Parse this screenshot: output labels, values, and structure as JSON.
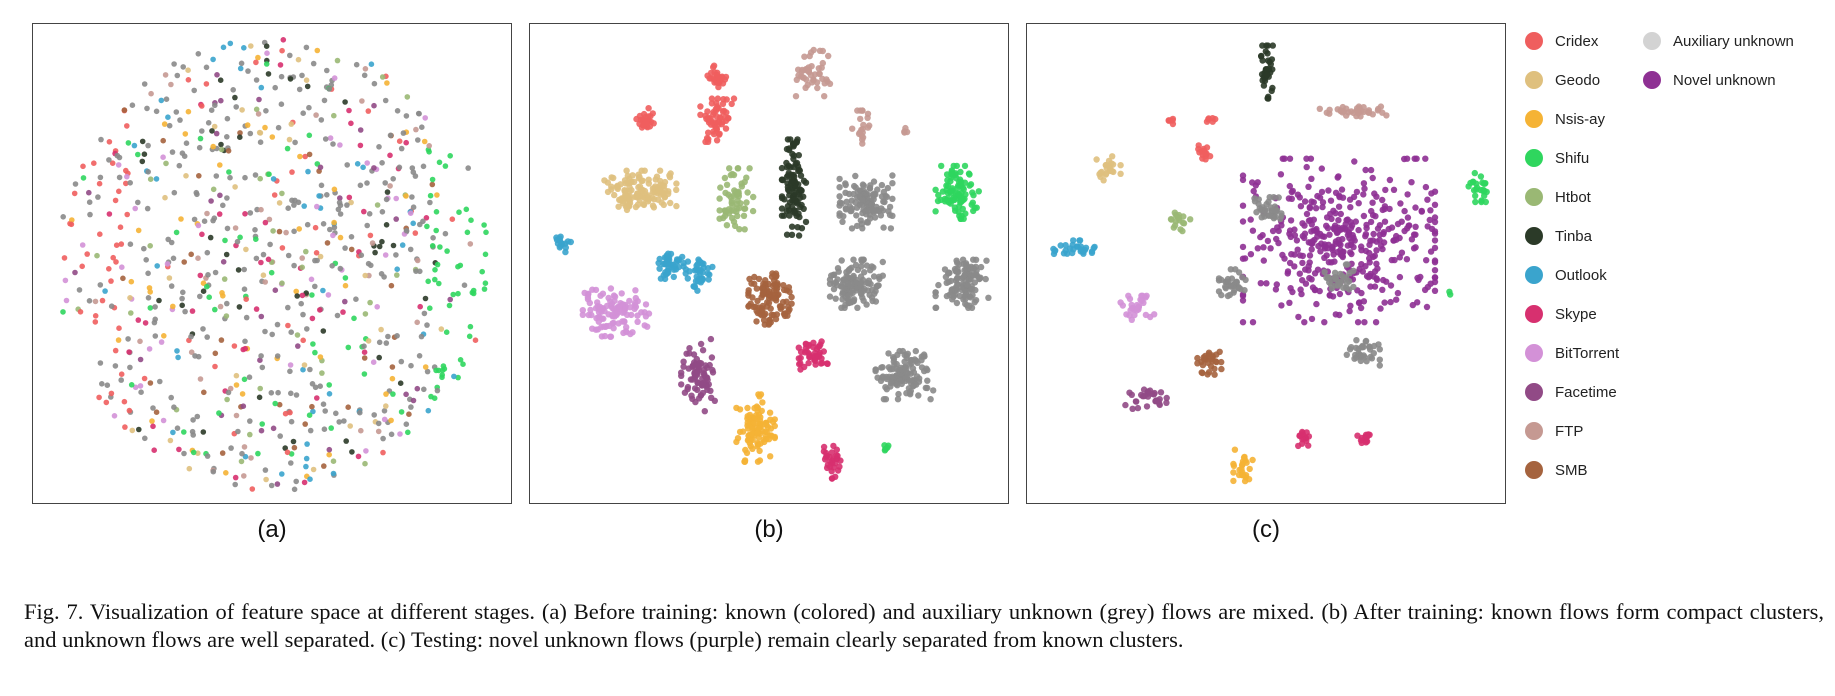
{
  "figure": {
    "panel_labels": [
      "(a)",
      "(b)",
      "(c)"
    ],
    "caption": "Fig. 7.  Visualization of feature space at different stages. (a) Before training: known (colored) and auxiliary unknown (grey) flows are mixed. (b) After training: known flows form compact clusters, and unknown flows are well separated. (c) Testing: novel unknown flows (purple) remain clearly separated from known clusters."
  },
  "legend": [
    {
      "name": "Cridex",
      "color": "#ef5e5e"
    },
    {
      "name": "Geodo",
      "color": "#dfc07e"
    },
    {
      "name": "Nsis-ay",
      "color": "#f5b335"
    },
    {
      "name": "Shifu",
      "color": "#2fd65e"
    },
    {
      "name": "Htbot",
      "color": "#9ab874"
    },
    {
      "name": "Tinba",
      "color": "#2b3a28"
    },
    {
      "name": "Outlook",
      "color": "#3aa4cd"
    },
    {
      "name": "Skype",
      "color": "#d7306f"
    },
    {
      "name": "BitTorrent",
      "color": "#d391d7"
    },
    {
      "name": "Facetime",
      "color": "#914a86"
    },
    {
      "name": "FTP",
      "color": "#c59992"
    },
    {
      "name": "SMB",
      "color": "#a5633e"
    },
    {
      "name": "Auxiliary unknown",
      "color": "#d3d3d3"
    },
    {
      "name": "Novel unknown",
      "color": "#8e3093"
    }
  ],
  "chart_data": [
    {
      "type": "scatter",
      "title": "(a)",
      "series_colors": {
        "known": "multi",
        "auxiliary_unknown": "#8a8a8a"
      },
      "clusters": []
    },
    {
      "type": "scatter",
      "title": "(b)",
      "clusters": [
        {
          "series": "Cridex",
          "cx": 0.24,
          "cy": 0.2,
          "rx": 0.02,
          "ry": 0.025,
          "n": 25
        },
        {
          "series": "Cridex",
          "cx": 0.39,
          "cy": 0.11,
          "rx": 0.02,
          "ry": 0.025,
          "n": 25
        },
        {
          "series": "Cridex",
          "cx": 0.39,
          "cy": 0.2,
          "rx": 0.035,
          "ry": 0.045,
          "n": 60
        },
        {
          "series": "FTP",
          "cx": 0.59,
          "cy": 0.1,
          "rx": 0.04,
          "ry": 0.05,
          "n": 45
        },
        {
          "series": "FTP",
          "cx": 0.69,
          "cy": 0.22,
          "rx": 0.02,
          "ry": 0.04,
          "n": 20
        },
        {
          "series": "FTP",
          "cx": 0.78,
          "cy": 0.22,
          "rx": 0.01,
          "ry": 0.01,
          "n": 4
        },
        {
          "series": "Geodo",
          "cx": 0.23,
          "cy": 0.35,
          "rx": 0.075,
          "ry": 0.045,
          "n": 130
        },
        {
          "series": "Htbot",
          "cx": 0.43,
          "cy": 0.37,
          "rx": 0.035,
          "ry": 0.07,
          "n": 60
        },
        {
          "series": "Tinba",
          "cx": 0.55,
          "cy": 0.34,
          "rx": 0.025,
          "ry": 0.1,
          "n": 110
        },
        {
          "series": "Auxiliary unknown",
          "cx": 0.7,
          "cy": 0.37,
          "rx": 0.055,
          "ry": 0.055,
          "n": 120
        },
        {
          "series": "Shifu",
          "cx": 0.89,
          "cy": 0.35,
          "rx": 0.045,
          "ry": 0.055,
          "n": 90
        },
        {
          "series": "Outlook",
          "cx": 0.07,
          "cy": 0.46,
          "rx": 0.015,
          "ry": 0.018,
          "n": 15
        },
        {
          "series": "Outlook",
          "cx": 0.29,
          "cy": 0.5,
          "rx": 0.03,
          "ry": 0.03,
          "n": 40
        },
        {
          "series": "Outlook",
          "cx": 0.35,
          "cy": 0.52,
          "rx": 0.03,
          "ry": 0.035,
          "n": 40
        },
        {
          "series": "SMB",
          "cx": 0.5,
          "cy": 0.57,
          "rx": 0.045,
          "ry": 0.055,
          "n": 110
        },
        {
          "series": "Auxiliary unknown",
          "cx": 0.68,
          "cy": 0.54,
          "rx": 0.055,
          "ry": 0.05,
          "n": 120
        },
        {
          "series": "Auxiliary unknown",
          "cx": 0.9,
          "cy": 0.54,
          "rx": 0.055,
          "ry": 0.05,
          "n": 120
        },
        {
          "series": "BitTorrent",
          "cx": 0.18,
          "cy": 0.6,
          "rx": 0.07,
          "ry": 0.05,
          "n": 110
        },
        {
          "series": "Facetime",
          "cx": 0.35,
          "cy": 0.73,
          "rx": 0.035,
          "ry": 0.075,
          "n": 80
        },
        {
          "series": "Skype",
          "cx": 0.59,
          "cy": 0.69,
          "rx": 0.03,
          "ry": 0.03,
          "n": 45
        },
        {
          "series": "Auxiliary unknown",
          "cx": 0.78,
          "cy": 0.73,
          "rx": 0.06,
          "ry": 0.05,
          "n": 120
        },
        {
          "series": "Nsis-ay",
          "cx": 0.47,
          "cy": 0.84,
          "rx": 0.04,
          "ry": 0.07,
          "n": 100
        },
        {
          "series": "Skype",
          "cx": 0.63,
          "cy": 0.91,
          "rx": 0.02,
          "ry": 0.035,
          "n": 30
        },
        {
          "series": "Shifu",
          "cx": 0.74,
          "cy": 0.88,
          "rx": 0.01,
          "ry": 0.01,
          "n": 6
        }
      ]
    },
    {
      "type": "scatter",
      "title": "(c)",
      "clusters": [
        {
          "series": "Tinba",
          "cx": 0.5,
          "cy": 0.1,
          "rx": 0.012,
          "ry": 0.055,
          "n": 40
        },
        {
          "series": "FTP",
          "cx": 0.68,
          "cy": 0.18,
          "rx": 0.07,
          "ry": 0.012,
          "n": 35
        },
        {
          "series": "Cridex",
          "cx": 0.3,
          "cy": 0.2,
          "rx": 0.012,
          "ry": 0.01,
          "n": 6
        },
        {
          "series": "Cridex",
          "cx": 0.38,
          "cy": 0.2,
          "rx": 0.012,
          "ry": 0.01,
          "n": 6
        },
        {
          "series": "Cridex",
          "cx": 0.37,
          "cy": 0.27,
          "rx": 0.015,
          "ry": 0.025,
          "n": 15
        },
        {
          "series": "Geodo",
          "cx": 0.17,
          "cy": 0.3,
          "rx": 0.025,
          "ry": 0.025,
          "n": 25
        },
        {
          "series": "Shifu",
          "cx": 0.94,
          "cy": 0.34,
          "rx": 0.02,
          "ry": 0.03,
          "n": 25
        },
        {
          "series": "Htbot",
          "cx": 0.32,
          "cy": 0.41,
          "rx": 0.02,
          "ry": 0.025,
          "n": 18
        },
        {
          "series": "Outlook",
          "cx": 0.1,
          "cy": 0.47,
          "rx": 0.045,
          "ry": 0.02,
          "n": 30
        },
        {
          "series": "Novel unknown",
          "cx": 0.65,
          "cy": 0.45,
          "rx": 0.2,
          "ry": 0.17,
          "n": 420
        },
        {
          "series": "Auxiliary unknown",
          "cx": 0.5,
          "cy": 0.39,
          "rx": 0.03,
          "ry": 0.03,
          "n": 35
        },
        {
          "series": "Auxiliary unknown",
          "cx": 0.43,
          "cy": 0.54,
          "rx": 0.03,
          "ry": 0.03,
          "n": 35
        },
        {
          "series": "Auxiliary unknown",
          "cx": 0.65,
          "cy": 0.53,
          "rx": 0.03,
          "ry": 0.03,
          "n": 35
        },
        {
          "series": "Auxiliary unknown",
          "cx": 0.7,
          "cy": 0.68,
          "rx": 0.035,
          "ry": 0.03,
          "n": 35
        },
        {
          "series": "BitTorrent",
          "cx": 0.23,
          "cy": 0.59,
          "rx": 0.035,
          "ry": 0.025,
          "n": 30
        },
        {
          "series": "SMB",
          "cx": 0.38,
          "cy": 0.7,
          "rx": 0.025,
          "ry": 0.03,
          "n": 30
        },
        {
          "series": "Facetime",
          "cx": 0.25,
          "cy": 0.78,
          "rx": 0.045,
          "ry": 0.02,
          "n": 30
        },
        {
          "series": "Nsis-ay",
          "cx": 0.45,
          "cy": 0.92,
          "rx": 0.02,
          "ry": 0.035,
          "n": 25
        },
        {
          "series": "Skype",
          "cx": 0.58,
          "cy": 0.86,
          "rx": 0.015,
          "ry": 0.02,
          "n": 15
        },
        {
          "series": "Skype",
          "cx": 0.7,
          "cy": 0.86,
          "rx": 0.02,
          "ry": 0.015,
          "n": 15
        },
        {
          "series": "Shifu",
          "cx": 0.88,
          "cy": 0.56,
          "rx": 0.006,
          "ry": 0.006,
          "n": 2
        }
      ]
    }
  ]
}
